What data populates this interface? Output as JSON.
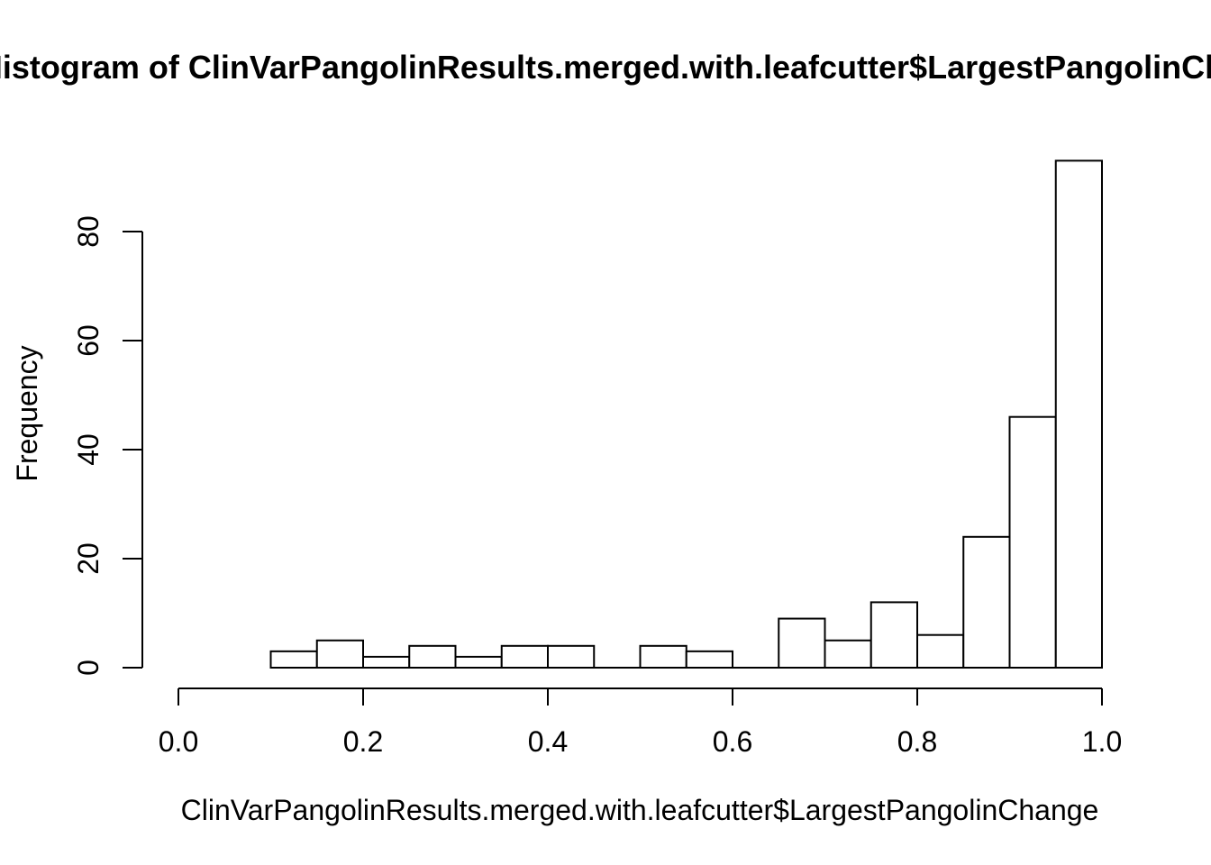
{
  "chart_data": {
    "type": "bar",
    "subtype": "histogram",
    "title": "Histogram of ClinVarPangolinResults.merged.with.leafcutter$LargestPangolinChange",
    "xlabel": "ClinVarPangolinResults.merged.with.leafcutter$LargestPangolinChange",
    "ylabel": "Frequency",
    "bin_edges": [
      0.1,
      0.15,
      0.2,
      0.25,
      0.3,
      0.35,
      0.4,
      0.45,
      0.5,
      0.55,
      0.6,
      0.65,
      0.7,
      0.75,
      0.8,
      0.85,
      0.9,
      0.95,
      1.0
    ],
    "counts": [
      3,
      5,
      2,
      4,
      2,
      4,
      4,
      0,
      4,
      3,
      0,
      9,
      5,
      12,
      6,
      24,
      46,
      93
    ],
    "xlim": [
      0.0,
      1.0
    ],
    "ylim": [
      0,
      93
    ],
    "x_tick_values": [
      0.0,
      0.2,
      0.4,
      0.6,
      0.8,
      1.0
    ],
    "x_tick_labels": [
      "0.0",
      "0.2",
      "0.4",
      "0.6",
      "0.8",
      "1.0"
    ],
    "y_tick_values": [
      0,
      20,
      40,
      60,
      80
    ],
    "y_tick_labels": [
      "0",
      "20",
      "40",
      "60",
      "80"
    ],
    "grid": false,
    "legend": false,
    "background": "#ffffff",
    "bar_fill": "#ffffff",
    "bar_stroke": "#000000",
    "axis_color": "#000000"
  }
}
